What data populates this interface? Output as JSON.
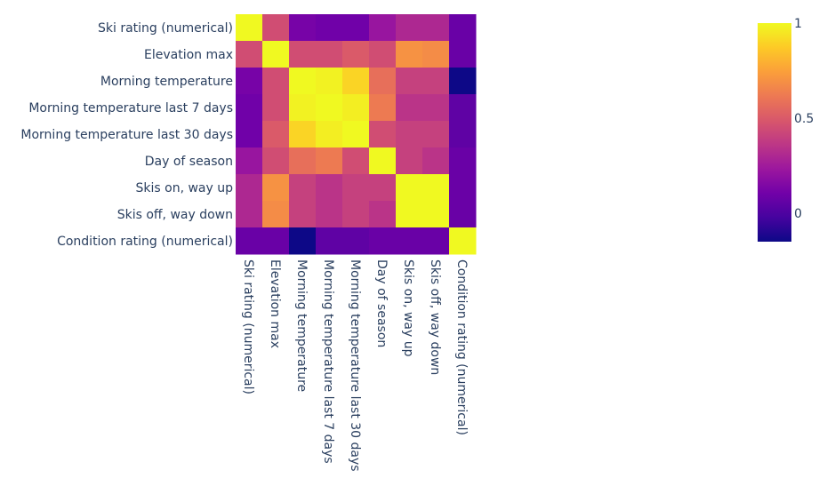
{
  "chart_data": {
    "type": "heatmap",
    "title": "",
    "xlabel": "",
    "ylabel": "",
    "categories_x": [
      "Ski rating (numerical)",
      "Elevation max",
      "Morning temperature",
      "Morning temperature last 7 days",
      "Morning temperature last 30 days",
      "Day of season",
      "Skis on, way up",
      "Skis off, way down",
      "Condition rating (numerical)"
    ],
    "categories_y": [
      "Ski rating (numerical)",
      "Elevation max",
      "Morning temperature",
      "Morning temperature last 7 days",
      "Morning temperature last 30 days",
      "Day of season",
      "Skis on, way up",
      "Skis off, way down",
      "Condition rating (numerical)"
    ],
    "values": [
      [
        1.0,
        0.45,
        0.12,
        0.1,
        0.1,
        0.22,
        0.3,
        0.3,
        0.08
      ],
      [
        0.45,
        1.0,
        0.45,
        0.45,
        0.5,
        0.45,
        0.7,
        0.68,
        0.08
      ],
      [
        0.12,
        0.45,
        1.0,
        0.98,
        0.9,
        0.58,
        0.4,
        0.4,
        -0.15
      ],
      [
        0.1,
        0.45,
        0.98,
        1.0,
        0.97,
        0.62,
        0.35,
        0.35,
        0.05
      ],
      [
        0.1,
        0.5,
        0.9,
        0.97,
        1.0,
        0.45,
        0.4,
        0.4,
        0.05
      ],
      [
        0.22,
        0.45,
        0.58,
        0.62,
        0.45,
        1.0,
        0.4,
        0.35,
        0.08
      ],
      [
        0.3,
        0.7,
        0.4,
        0.35,
        0.4,
        0.4,
        1.0,
        1.0,
        0.08
      ],
      [
        0.3,
        0.68,
        0.4,
        0.35,
        0.4,
        0.35,
        1.0,
        1.0,
        0.08
      ],
      [
        0.08,
        0.08,
        -0.15,
        0.05,
        0.05,
        0.08,
        0.08,
        0.08,
        1.0
      ]
    ],
    "zlim": [
      -0.15,
      1.0
    ],
    "colorbar": {
      "ticks": [
        0,
        0.5,
        1
      ],
      "tick_labels": [
        "0",
        "0.5",
        "1"
      ],
      "colorscale": [
        "#0d0887",
        "#46039f",
        "#7201a8",
        "#9c179e",
        "#bd3786",
        "#d8576b",
        "#ed7953",
        "#fb9f3a",
        "#fdca26",
        "#f0f921"
      ]
    },
    "grid": false
  }
}
